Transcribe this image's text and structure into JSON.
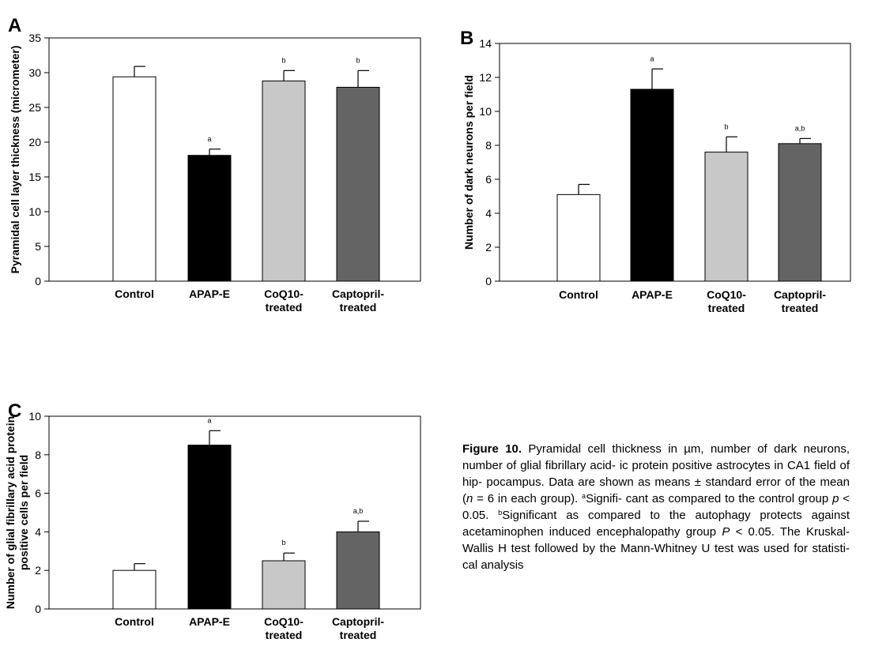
{
  "chart_data": [
    {
      "panel": "A",
      "type": "bar",
      "categories": [
        "Control",
        "APAP-E",
        "CoQ10-treated",
        "Captopril-treated"
      ],
      "category_lines": [
        [
          "Control"
        ],
        [
          "APAP-E"
        ],
        [
          "CoQ10-",
          "treated"
        ],
        [
          "Captopril-",
          "treated"
        ]
      ],
      "values": [
        29.4,
        18.1,
        28.8,
        27.9
      ],
      "errors": [
        1.5,
        0.9,
        1.5,
        2.4
      ],
      "significance": [
        "",
        "a",
        "b",
        "b"
      ],
      "ylabel": "Pyramidal cell layer thickness (micrometer)",
      "ylabel_lines": [
        "Pyramidal cell layer thickness (micrometer)"
      ],
      "ylim": [
        0,
        35
      ],
      "yticks": [
        0,
        5,
        10,
        15,
        20,
        25,
        30,
        35
      ],
      "colors": [
        "#ffffff",
        "#000000",
        "#c8c8c8",
        "#646464"
      ]
    },
    {
      "panel": "B",
      "type": "bar",
      "categories": [
        "Control",
        "APAP-E",
        "CoQ10-treated",
        "Captopril-treated"
      ],
      "category_lines": [
        [
          "Control"
        ],
        [
          "APAP-E"
        ],
        [
          "CoQ10-",
          "treated"
        ],
        [
          "Captopril-",
          "treated"
        ]
      ],
      "values": [
        5.1,
        11.3,
        7.6,
        8.1
      ],
      "errors": [
        0.6,
        1.2,
        0.9,
        0.3
      ],
      "significance": [
        "",
        "a",
        "b",
        "a,b"
      ],
      "ylabel": "Number of dark neurons per field",
      "ylabel_lines": [
        "Number of dark neurons per field"
      ],
      "ylim": [
        0,
        14
      ],
      "yticks": [
        0,
        2,
        4,
        6,
        8,
        10,
        12,
        14
      ],
      "colors": [
        "#ffffff",
        "#000000",
        "#c8c8c8",
        "#646464"
      ]
    },
    {
      "panel": "C",
      "type": "bar",
      "categories": [
        "Control",
        "APAP-E",
        "CoQ10-treated",
        "Captopril-treated"
      ],
      "category_lines": [
        [
          "Control"
        ],
        [
          "APAP-E"
        ],
        [
          "CoQ10-",
          "treated"
        ],
        [
          "Captopril-",
          "treated"
        ]
      ],
      "values": [
        2.0,
        8.5,
        2.5,
        4.0
      ],
      "errors": [
        0.35,
        0.75,
        0.4,
        0.55
      ],
      "significance": [
        "",
        "a",
        "b",
        "a,b"
      ],
      "ylabel": "Number of glial fibrillary acid protein positive cells per field",
      "ylabel_lines": [
        "Number of glial fibrillary acid protein",
        "positive cells per field"
      ],
      "ylim": [
        0,
        10
      ],
      "yticks": [
        0,
        2,
        4,
        6,
        8,
        10
      ],
      "colors": [
        "#ffffff",
        "#000000",
        "#c8c8c8",
        "#646464"
      ]
    }
  ],
  "caption": {
    "label": "Figure 10.",
    "lines": [
      [
        {
          "t": "Pyramidal cell thickness in µm, number"
        }
      ],
      [
        {
          "t": "of dark neurons, number of glial fibrillary acid-"
        }
      ],
      [
        {
          "t": "ic protein positive astrocytes in CA1 field of hip-"
        }
      ],
      [
        {
          "t": "pocampus. Data are shown as means ± standard"
        }
      ],
      [
        {
          "t": "error of the mean ("
        },
        {
          "t": "n",
          "i": true
        },
        {
          "t": " = 6 in each group). "
        },
        {
          "t": "a",
          "sup": true
        },
        {
          "t": "Signifi-"
        }
      ],
      [
        {
          "t": "cant as compared to the control group "
        },
        {
          "t": "p",
          "i": true
        },
        {
          "t": " < 0.05."
        }
      ],
      [
        {
          "t": "b",
          "sup": true
        },
        {
          "t": "Significant as compared to the autophagy protects"
        }
      ],
      [
        {
          "t": "against acetaminophen induced encephalopathy"
        }
      ],
      [
        {
          "t": "group "
        },
        {
          "t": "P",
          "i": true
        },
        {
          "t": " < 0.05. The Kruskal-Wallis H test followed"
        }
      ],
      [
        {
          "t": "by the Mann-Whitney U test was used for statisti-"
        }
      ],
      [
        {
          "t": "cal analysis"
        }
      ]
    ]
  }
}
